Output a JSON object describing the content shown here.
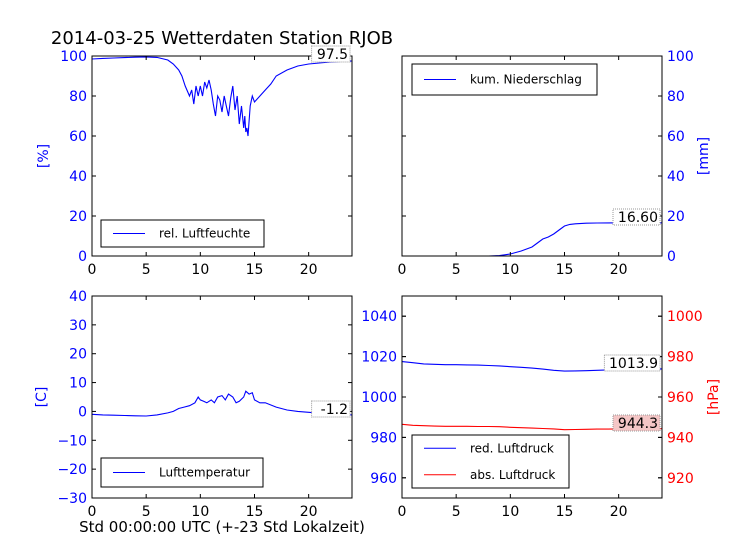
{
  "title": "2014-03-25 Wetterdaten Station RJOB",
  "xlabel": "Std 00:00:00 UTC (+-23 Std Lokalzeit)",
  "colors": {
    "blue": "#0000ff",
    "red": "#ff0000",
    "black": "#000000",
    "callout_red_bg": "#f4c6c6"
  },
  "chart_data": [
    {
      "id": "humidity",
      "type": "line",
      "xlim": [
        0,
        24
      ],
      "ylim": [
        0,
        100
      ],
      "xticks": [
        "0",
        "5",
        "10",
        "15",
        "20"
      ],
      "xtick_values": [
        0,
        5,
        10,
        15,
        20
      ],
      "yticks": [
        "0",
        "20",
        "40",
        "60",
        "80",
        "100"
      ],
      "ytick_values": [
        0,
        20,
        40,
        60,
        80,
        100
      ],
      "ylabel": "[%]",
      "legend": {
        "position": "lower-left",
        "label": "rel. Luftfeuchte"
      },
      "callout": "97.5",
      "series": [
        {
          "name": "rel. Luftfeuchte",
          "color": "#0000ff",
          "x": [
            0,
            1,
            2,
            3,
            4,
            5,
            6,
            7,
            7.5,
            8,
            8.3,
            8.6,
            9,
            9.2,
            9.4,
            9.6,
            9.8,
            10,
            10.2,
            10.4,
            10.6,
            10.8,
            11,
            11.2,
            11.4,
            11.6,
            11.8,
            12,
            12.2,
            12.4,
            12.6,
            12.8,
            13,
            13.2,
            13.4,
            13.6,
            13.8,
            14,
            14.1,
            14.2,
            14.3,
            14.4,
            14.6,
            14.8,
            15,
            15.5,
            16,
            16.5,
            17,
            18,
            19,
            20,
            21,
            22,
            23,
            24
          ],
          "y": [
            98.5,
            98.8,
            99,
            99.2,
            99.4,
            99.5,
            99.3,
            98,
            96,
            93,
            90,
            85,
            80,
            83,
            76,
            85,
            80,
            85,
            80,
            87,
            84,
            88,
            83,
            76,
            70,
            80,
            78,
            72,
            80,
            75,
            70,
            79,
            85,
            73,
            80,
            66,
            75,
            64,
            70,
            62,
            64,
            60,
            75,
            80,
            77,
            80,
            83,
            86,
            90,
            93,
            95,
            96,
            96.5,
            97,
            97.3,
            97.5
          ]
        }
      ]
    },
    {
      "id": "precipitation",
      "type": "line",
      "xlim": [
        0,
        24
      ],
      "ylim": [
        0,
        100
      ],
      "xticks": [
        "0",
        "5",
        "10",
        "15",
        "20"
      ],
      "xtick_values": [
        0,
        5,
        10,
        15,
        20
      ],
      "yticks": [
        "0",
        "20",
        "40",
        "60",
        "80",
        "100"
      ],
      "ytick_values": [
        0,
        20,
        40,
        60,
        80,
        100
      ],
      "ylabel": "[mm]",
      "yaxis_side": "right",
      "legend": {
        "position": "upper-left",
        "label": "kum. Niederschlag"
      },
      "callout": "16.60",
      "series": [
        {
          "name": "kum. Niederschlag",
          "color": "#0000ff",
          "x": [
            0,
            8,
            9,
            10,
            11,
            12,
            12.5,
            13,
            13.5,
            14,
            14.5,
            15,
            15.5,
            16,
            17,
            18,
            19,
            20,
            21,
            22,
            23,
            24
          ],
          "y": [
            0,
            0,
            0.2,
            1,
            2.5,
            4.5,
            6.5,
            8.5,
            9.5,
            11,
            13,
            15,
            15.8,
            16.1,
            16.4,
            16.5,
            16.55,
            16.6,
            16.6,
            16.6,
            16.6,
            16.6
          ]
        }
      ]
    },
    {
      "id": "temperature",
      "type": "line",
      "xlim": [
        0,
        24
      ],
      "ylim": [
        -30,
        40
      ],
      "xticks": [
        "0",
        "5",
        "10",
        "15",
        "20"
      ],
      "xtick_values": [
        0,
        5,
        10,
        15,
        20
      ],
      "yticks": [
        "−30",
        "−20",
        "−10",
        "0",
        "10",
        "20",
        "30",
        "40"
      ],
      "ytick_values": [
        -30,
        -20,
        -10,
        0,
        10,
        20,
        30,
        40
      ],
      "ylabel": "[C]",
      "legend": {
        "position": "lower-left",
        "label": "Lufttemperatur"
      },
      "callout": "-1.2",
      "series": [
        {
          "name": "Lufttemperatur",
          "color": "#0000ff",
          "x": [
            0,
            1,
            2,
            3,
            4,
            5,
            6,
            7,
            7.5,
            8,
            8.5,
            9,
            9.5,
            9.8,
            10,
            10.3,
            10.6,
            11,
            11.3,
            11.6,
            12,
            12.3,
            12.6,
            13,
            13.3,
            13.6,
            14,
            14.2,
            14.5,
            14.8,
            15,
            15.5,
            16,
            17,
            18,
            19,
            20,
            21,
            22,
            23,
            24
          ],
          "y": [
            -1,
            -1.2,
            -1.3,
            -1.4,
            -1.5,
            -1.6,
            -1.2,
            -0.5,
            0,
            1,
            1.5,
            2,
            3,
            5,
            4,
            3.5,
            3,
            4,
            3,
            5,
            5.5,
            4,
            6,
            5,
            3,
            3.5,
            5,
            7,
            6,
            6.5,
            4,
            3,
            3,
            1.5,
            0.5,
            0,
            -0.3,
            -0.6,
            -0.9,
            -1.1,
            -1.2
          ]
        }
      ]
    },
    {
      "id": "pressure",
      "type": "line",
      "xlim": [
        0,
        24
      ],
      "ylim": [
        950,
        1050
      ],
      "xticks": [
        "0",
        "5",
        "10",
        "15",
        "20"
      ],
      "xtick_values": [
        0,
        5,
        10,
        15,
        20
      ],
      "yticks": [
        "960",
        "980",
        "1000",
        "1020",
        "1040"
      ],
      "ytick_values": [
        960,
        980,
        1000,
        1020,
        1040
      ],
      "y2lim": [
        910,
        1010
      ],
      "y2ticks": [
        "920",
        "940",
        "960",
        "980",
        "1000"
      ],
      "y2tick_values": [
        920,
        940,
        960,
        980,
        1000
      ],
      "y2label": "[hPa]",
      "legend": {
        "position": "lower-left",
        "labels": [
          "red. Luftdruck",
          "abs. Luftdruck"
        ]
      },
      "callouts": [
        "1013.9",
        "944.3"
      ],
      "series": [
        {
          "name": "red. Luftdruck",
          "color": "#0000ff",
          "axis": "left",
          "x": [
            0,
            1,
            2,
            3,
            4,
            5,
            6,
            7,
            8,
            9,
            10,
            11,
            12,
            13,
            14,
            15,
            16,
            17,
            18,
            19,
            20,
            21,
            22,
            23,
            24
          ],
          "y": [
            1017.5,
            1017,
            1016.4,
            1016.2,
            1016,
            1016,
            1015.9,
            1015.8,
            1015.6,
            1015.4,
            1015,
            1014.7,
            1014.3,
            1013.8,
            1013.2,
            1012.8,
            1012.9,
            1013,
            1013.2,
            1013.4,
            1013.6,
            1013.8,
            1013.9,
            1013.9,
            1013.9
          ]
        },
        {
          "name": "abs. Luftdruck",
          "color": "#ff0000",
          "axis": "right",
          "x": [
            0,
            1,
            2,
            3,
            4,
            5,
            6,
            7,
            8,
            9,
            10,
            11,
            12,
            13,
            14,
            15,
            16,
            17,
            18,
            19,
            20,
            21,
            22,
            23,
            24
          ],
          "y": [
            946.5,
            946,
            945.8,
            945.6,
            945.5,
            945.5,
            945.5,
            945.4,
            945.4,
            945.3,
            945,
            944.8,
            944.6,
            944.4,
            944.2,
            943.8,
            943.9,
            944,
            944.1,
            944.1,
            944.2,
            944.3,
            944.3,
            944.3,
            944.3
          ]
        }
      ]
    }
  ]
}
